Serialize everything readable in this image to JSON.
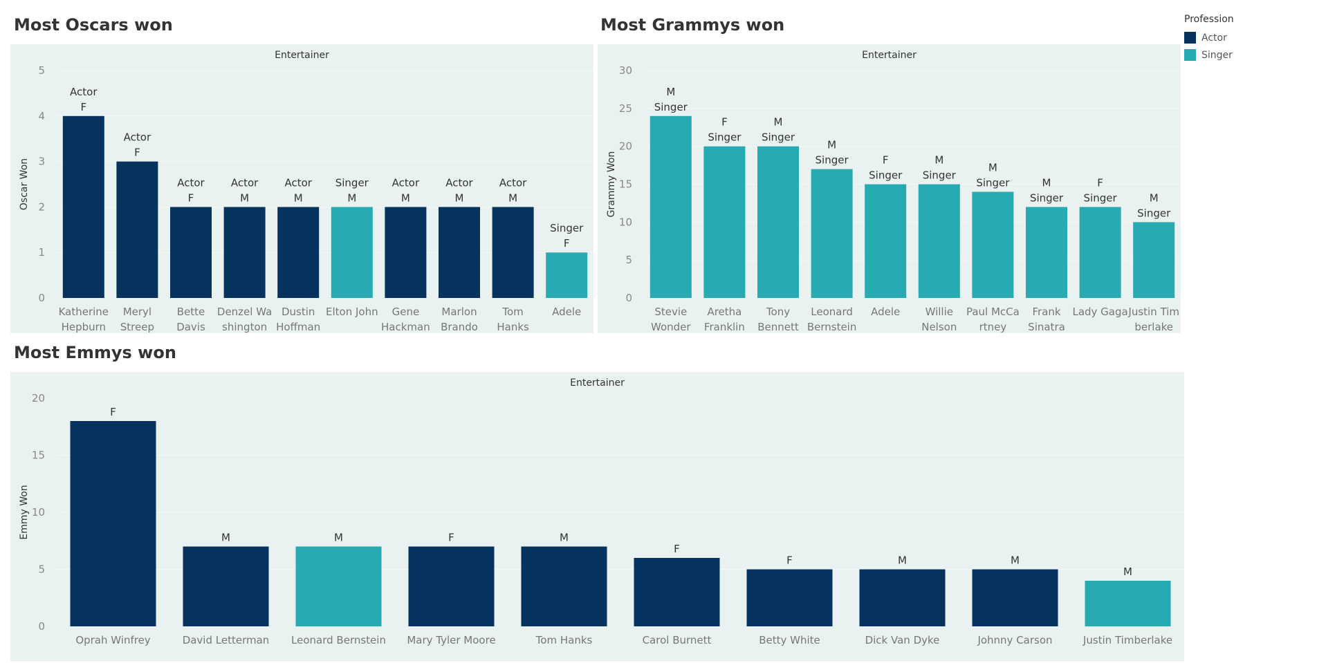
{
  "legend": {
    "title": "Profession",
    "items": [
      {
        "label": "Actor",
        "color": "#05335E"
      },
      {
        "label": "Singer",
        "color": "#27AAB1"
      }
    ]
  },
  "colors": {
    "Actor": "#05335E",
    "Singer": "#27AAB1",
    "panel_bg": "#E9F2F0"
  },
  "chart_data": [
    {
      "id": "oscars",
      "type": "bar",
      "title": "Most Oscars won",
      "header": "Entertainer",
      "ylabel": "Oscar Won",
      "ylim": [
        0,
        5
      ],
      "yticks": [
        0,
        1,
        2,
        3,
        4,
        5
      ],
      "label_order": [
        "profession",
        "gender"
      ],
      "categories": [
        [
          "Katherine",
          "Hepburn"
        ],
        [
          "Meryl",
          "Streep"
        ],
        [
          "Bette",
          "Davis"
        ],
        [
          "Denzel Wa",
          "shington"
        ],
        [
          "Dustin",
          "Hoffman"
        ],
        [
          "Elton John"
        ],
        [
          "Gene",
          "Hackman"
        ],
        [
          "Marlon",
          "Brando"
        ],
        [
          "Tom",
          "Hanks"
        ],
        [
          "Adele"
        ]
      ],
      "values": [
        4,
        3,
        2,
        2,
        2,
        2,
        2,
        2,
        2,
        1
      ],
      "professions": [
        "Actor",
        "Actor",
        "Actor",
        "Actor",
        "Actor",
        "Singer",
        "Actor",
        "Actor",
        "Actor",
        "Singer"
      ],
      "genders": [
        "F",
        "F",
        "F",
        "M",
        "M",
        "M",
        "M",
        "M",
        "M",
        "F"
      ]
    },
    {
      "id": "grammys",
      "type": "bar",
      "title": "Most Grammys won",
      "header": "Entertainer",
      "ylabel": "Grammy Won",
      "ylim": [
        0,
        30
      ],
      "yticks": [
        0,
        5,
        10,
        15,
        20,
        25,
        30
      ],
      "label_order": [
        "gender",
        "profession"
      ],
      "categories": [
        [
          "Stevie",
          "Wonder"
        ],
        [
          "Aretha",
          "Franklin"
        ],
        [
          "Tony",
          "Bennett"
        ],
        [
          "Leonard",
          "Bernstein"
        ],
        [
          "Adele"
        ],
        [
          "Willie",
          "Nelson"
        ],
        [
          "Paul McCa",
          "rtney"
        ],
        [
          "Frank",
          "Sinatra"
        ],
        [
          "Lady Gaga"
        ],
        [
          "Justin Tim",
          "berlake"
        ]
      ],
      "values": [
        24,
        20,
        20,
        17,
        15,
        15,
        14,
        12,
        12,
        10
      ],
      "professions": [
        "Singer",
        "Singer",
        "Singer",
        "Singer",
        "Singer",
        "Singer",
        "Singer",
        "Singer",
        "Singer",
        "Singer"
      ],
      "genders": [
        "M",
        "F",
        "M",
        "M",
        "F",
        "M",
        "M",
        "M",
        "F",
        "M"
      ]
    },
    {
      "id": "emmys",
      "type": "bar",
      "title": "Most Emmys won",
      "header": "Entertainer",
      "ylabel": "Emmy Won",
      "ylim": [
        0,
        20
      ],
      "yticks": [
        0,
        5,
        10,
        15,
        20
      ],
      "label_order": [
        "gender"
      ],
      "categories": [
        [
          "Oprah Winfrey"
        ],
        [
          "David Letterman"
        ],
        [
          "Leonard Bernstein"
        ],
        [
          "Mary Tyler Moore"
        ],
        [
          "Tom Hanks"
        ],
        [
          "Carol Burnett"
        ],
        [
          "Betty White"
        ],
        [
          "Dick Van Dyke"
        ],
        [
          "Johnny Carson"
        ],
        [
          "Justin Timberlake"
        ]
      ],
      "values": [
        18,
        7,
        7,
        7,
        7,
        6,
        5,
        5,
        5,
        4
      ],
      "professions": [
        "Actor",
        "Actor",
        "Singer",
        "Actor",
        "Actor",
        "Actor",
        "Actor",
        "Actor",
        "Actor",
        "Singer"
      ],
      "genders": [
        "F",
        "M",
        "M",
        "F",
        "M",
        "F",
        "F",
        "M",
        "M",
        "M"
      ]
    }
  ]
}
